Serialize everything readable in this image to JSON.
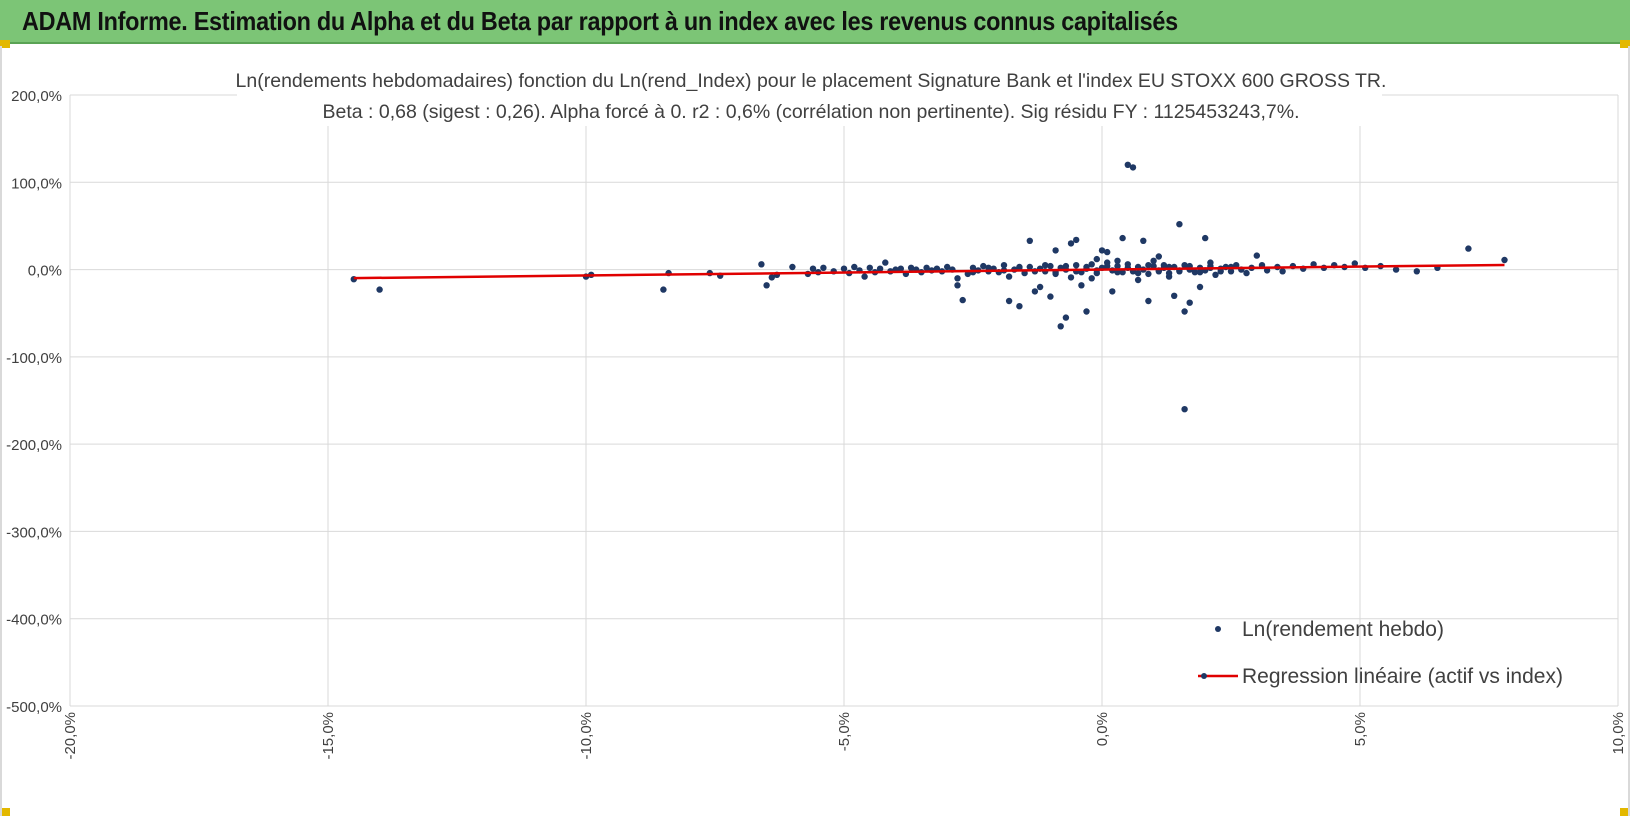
{
  "header": {
    "title": "ADAM Informe. Estimation du Alpha et du Beta par rapport à un index avec les revenus connus capitalisés"
  },
  "colors": {
    "banner": "#7cc576",
    "points": "#1f3864",
    "regression": "#e00000",
    "grid": "#d9d9d9"
  },
  "chart_data": {
    "type": "scatter",
    "title_line1": "Ln(rendements hebdomadaires) fonction du Ln(rend_Index) pour le placement Signature Bank et l'index EU STOXX 600 GROSS TR.",
    "title_line2": "Beta : 0,68 (sigest : 0,26).  Alpha forcé à 0. r2 : 0,6% (corrélation non pertinente). Sig résidu FY : 1125453243,7%.",
    "xlim": [
      -0.2,
      0.1
    ],
    "ylim": [
      -5.0,
      2.0
    ],
    "x_ticks": [
      -0.2,
      -0.15,
      -0.1,
      -0.05,
      0.0,
      0.05,
      0.1
    ],
    "x_tick_labels": [
      "-20,0%",
      "-15,0%",
      "-10,0%",
      "-5,0%",
      "0,0%",
      "5,0%",
      "10,0%"
    ],
    "y_ticks": [
      2.0,
      1.0,
      0.0,
      -1.0,
      -2.0,
      -3.0,
      -4.0,
      -5.0
    ],
    "y_tick_labels": [
      "200,0%",
      "100,0%",
      "0,0%",
      "-100,0%",
      "-200,0%",
      "-300,0%",
      "-400,0%",
      "-500,0%"
    ],
    "series": [
      {
        "name": "Ln(rendement hebdo)",
        "kind": "scatter",
        "points": [
          [
            -0.145,
            -0.11
          ],
          [
            -0.14,
            -0.23
          ],
          [
            -0.1,
            -0.08
          ],
          [
            -0.099,
            -0.06
          ],
          [
            -0.085,
            -0.23
          ],
          [
            -0.084,
            -0.04
          ],
          [
            -0.076,
            -0.04
          ],
          [
            -0.074,
            -0.07
          ],
          [
            -0.066,
            0.06
          ],
          [
            -0.065,
            -0.18
          ],
          [
            -0.064,
            -0.09
          ],
          [
            -0.063,
            -0.06
          ],
          [
            -0.06,
            0.03
          ],
          [
            -0.057,
            -0.05
          ],
          [
            -0.056,
            0.01
          ],
          [
            -0.055,
            -0.03
          ],
          [
            -0.054,
            0.02
          ],
          [
            -0.052,
            -0.02
          ],
          [
            -0.05,
            0.01
          ],
          [
            -0.049,
            -0.04
          ],
          [
            -0.048,
            0.03
          ],
          [
            -0.047,
            -0.01
          ],
          [
            -0.046,
            -0.08
          ],
          [
            -0.045,
            0.02
          ],
          [
            -0.044,
            -0.03
          ],
          [
            -0.043,
            0.01
          ],
          [
            -0.042,
            0.08
          ],
          [
            -0.041,
            -0.02
          ],
          [
            -0.04,
            0.0
          ],
          [
            -0.039,
            0.01
          ],
          [
            -0.038,
            -0.05
          ],
          [
            -0.037,
            0.02
          ],
          [
            -0.036,
            0.0
          ],
          [
            -0.035,
            -0.03
          ],
          [
            -0.034,
            0.02
          ],
          [
            -0.033,
            -0.01
          ],
          [
            -0.032,
            0.01
          ],
          [
            -0.031,
            -0.02
          ],
          [
            -0.03,
            0.03
          ],
          [
            -0.029,
            0.0
          ],
          [
            -0.028,
            -0.18
          ],
          [
            -0.028,
            -0.1
          ],
          [
            -0.027,
            -0.35
          ],
          [
            -0.026,
            -0.05
          ],
          [
            -0.025,
            0.02
          ],
          [
            -0.024,
            -0.01
          ],
          [
            -0.023,
            0.04
          ],
          [
            -0.022,
            -0.02
          ],
          [
            -0.021,
            0.01
          ],
          [
            -0.02,
            -0.03
          ],
          [
            -0.019,
            0.05
          ],
          [
            -0.018,
            -0.08
          ],
          [
            -0.017,
            0.0
          ],
          [
            -0.016,
            0.02
          ],
          [
            -0.015,
            -0.04
          ],
          [
            -0.014,
            0.03
          ],
          [
            -0.013,
            -0.25
          ],
          [
            -0.012,
            0.01
          ],
          [
            -0.011,
            -0.02
          ],
          [
            -0.01,
            0.04
          ],
          [
            -0.009,
            -0.05
          ],
          [
            -0.008,
            0.02
          ],
          [
            -0.007,
            0.0
          ],
          [
            -0.006,
            -0.09
          ],
          [
            -0.005,
            0.05
          ],
          [
            -0.004,
            -0.03
          ],
          [
            -0.003,
            0.01
          ],
          [
            -0.002,
            0.06
          ],
          [
            -0.001,
            -0.04
          ],
          [
            0.0,
            0.02
          ],
          [
            0.001,
            0.08
          ],
          [
            0.002,
            -0.01
          ],
          [
            -0.018,
            -0.36
          ],
          [
            -0.016,
            -0.42
          ],
          [
            -0.014,
            0.33
          ],
          [
            -0.012,
            -0.2
          ],
          [
            -0.01,
            -0.31
          ],
          [
            -0.009,
            0.22
          ],
          [
            -0.008,
            -0.65
          ],
          [
            -0.007,
            -0.55
          ],
          [
            -0.006,
            0.3
          ],
          [
            -0.005,
            0.34
          ],
          [
            -0.004,
            -0.18
          ],
          [
            -0.003,
            -0.48
          ],
          [
            -0.002,
            -0.1
          ],
          [
            -0.001,
            0.12
          ],
          [
            0.0,
            0.22
          ],
          [
            0.001,
            0.2
          ],
          [
            0.002,
            -0.25
          ],
          [
            0.003,
            0.1
          ],
          [
            0.004,
            0.36
          ],
          [
            0.005,
            1.2
          ],
          [
            0.006,
            1.17
          ],
          [
            0.007,
            -0.12
          ],
          [
            0.008,
            0.33
          ],
          [
            0.009,
            -0.36
          ],
          [
            0.01,
            0.1
          ],
          [
            0.011,
            0.15
          ],
          [
            0.012,
            0.05
          ],
          [
            0.013,
            -0.08
          ],
          [
            0.014,
            -0.3
          ],
          [
            0.015,
            0.52
          ],
          [
            0.016,
            -0.48
          ],
          [
            0.017,
            -0.38
          ],
          [
            0.016,
            -1.6
          ],
          [
            0.019,
            -0.2
          ],
          [
            0.02,
            0.36
          ],
          [
            0.021,
            0.08
          ],
          [
            0.003,
            0.04
          ],
          [
            0.004,
            -0.03
          ],
          [
            0.005,
            0.06
          ],
          [
            0.006,
            -0.02
          ],
          [
            0.007,
            0.03
          ],
          [
            0.008,
            0.0
          ],
          [
            0.009,
            -0.05
          ],
          [
            0.01,
            0.04
          ],
          [
            0.011,
            -0.01
          ],
          [
            0.012,
            0.02
          ],
          [
            0.013,
            -0.04
          ],
          [
            0.014,
            0.03
          ],
          [
            0.015,
            -0.02
          ],
          [
            0.016,
            0.05
          ],
          [
            0.017,
            0.0
          ],
          [
            0.018,
            -0.03
          ],
          [
            0.019,
            0.02
          ],
          [
            0.02,
            -0.01
          ],
          [
            0.021,
            0.04
          ],
          [
            0.022,
            -0.06
          ],
          [
            0.023,
            0.01
          ],
          [
            0.024,
            0.03
          ],
          [
            0.025,
            -0.02
          ],
          [
            0.026,
            0.05
          ],
          [
            0.027,
            0.0
          ],
          [
            0.028,
            -0.04
          ],
          [
            0.029,
            0.02
          ],
          [
            0.03,
            0.16
          ],
          [
            0.031,
            0.05
          ],
          [
            0.032,
            -0.01
          ],
          [
            0.034,
            0.03
          ],
          [
            0.035,
            -0.02
          ],
          [
            0.037,
            0.04
          ],
          [
            0.039,
            0.01
          ],
          [
            0.041,
            0.06
          ],
          [
            0.043,
            0.02
          ],
          [
            0.045,
            0.05
          ],
          [
            0.047,
            0.03
          ],
          [
            0.049,
            0.07
          ],
          [
            0.051,
            0.02
          ],
          [
            0.054,
            0.04
          ],
          [
            0.057,
            0.0
          ],
          [
            0.061,
            -0.02
          ],
          [
            0.065,
            0.02
          ],
          [
            0.071,
            0.24
          ],
          [
            0.078,
            0.11
          ],
          [
            -0.025,
            -0.03
          ],
          [
            -0.022,
            0.02
          ],
          [
            -0.019,
            -0.01
          ],
          [
            -0.016,
            0.03
          ],
          [
            -0.013,
            -0.02
          ],
          [
            -0.011,
            0.05
          ],
          [
            -0.009,
            -0.03
          ],
          [
            -0.007,
            0.04
          ],
          [
            -0.005,
            -0.02
          ],
          [
            -0.003,
            0.03
          ],
          [
            -0.001,
            -0.01
          ],
          [
            0.001,
            0.04
          ],
          [
            0.003,
            -0.03
          ],
          [
            0.005,
            0.02
          ],
          [
            0.007,
            -0.04
          ],
          [
            0.009,
            0.05
          ],
          [
            0.011,
            -0.02
          ],
          [
            0.013,
            0.03
          ],
          [
            0.015,
            -0.01
          ],
          [
            0.017,
            0.04
          ],
          [
            0.019,
            -0.03
          ],
          [
            0.021,
            0.02
          ],
          [
            0.023,
            -0.02
          ],
          [
            0.025,
            0.03
          ]
        ]
      },
      {
        "name": "Regression linéaire (actif vs index)",
        "kind": "line",
        "points": [
          [
            -0.145,
            -0.098
          ],
          [
            0.078,
            0.053
          ]
        ]
      }
    ],
    "legend": {
      "position": "bottom-right",
      "scatter_label": "Ln(rendement hebdo)",
      "line_label": "Regression linéaire (actif vs index)"
    }
  }
}
